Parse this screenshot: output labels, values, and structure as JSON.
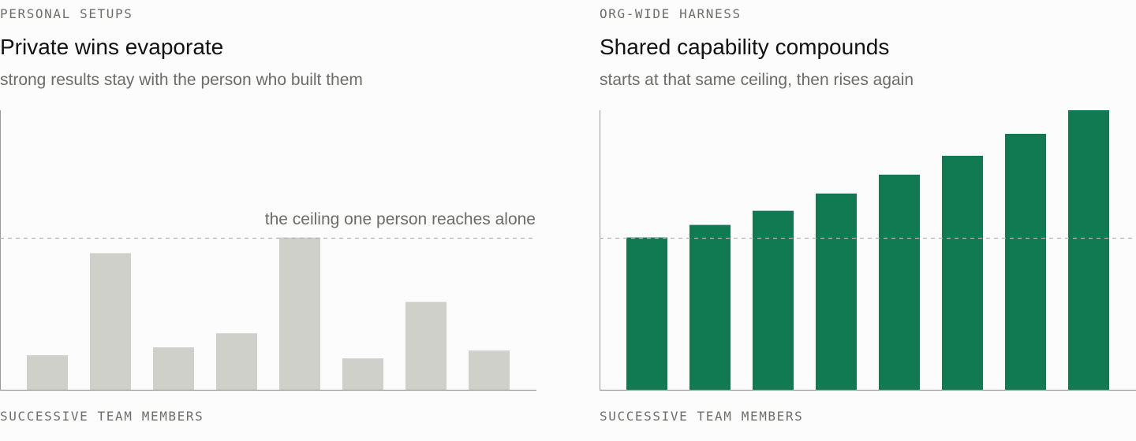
{
  "chart_data": [
    {
      "type": "bar",
      "eyebrow": "PERSONAL SETUPS",
      "title": "Private wins evaporate",
      "subtitle": "strong results stay with the person who built them",
      "xlabel": "SUCCESSIVE TEAM MEMBERS",
      "ylabel": "",
      "categories": [
        "",
        "",
        "",
        "",
        "",
        "",
        "",
        ""
      ],
      "values": [
        22,
        87,
        27,
        36,
        97,
        20,
        56,
        25
      ],
      "ylim": [
        0,
        178
      ],
      "reference_line": {
        "value": 97,
        "label": "the ceiling one person reaches alone"
      },
      "bar_color": "#d0d0cb",
      "grid": false,
      "legend": "none"
    },
    {
      "type": "bar",
      "eyebrow": "ORG-WIDE HARNESS",
      "title": "Shared capability compounds",
      "subtitle": "starts at that same ceiling, then rises again",
      "xlabel": "SUCCESSIVE TEAM MEMBERS",
      "ylabel": "",
      "categories": [
        "",
        "",
        "",
        "",
        "",
        "",
        "",
        ""
      ],
      "values": [
        97,
        105,
        114,
        125,
        137,
        149,
        163,
        178
      ],
      "ylim": [
        0,
        178
      ],
      "reference_line": {
        "value": 97,
        "label": ""
      },
      "bar_color": "#117a52",
      "grid": false,
      "legend": "none"
    }
  ],
  "colors": {
    "axis": "#9a9a96",
    "reference_line": "#b4b4b0",
    "annotation_text": "#6b6b68"
  }
}
